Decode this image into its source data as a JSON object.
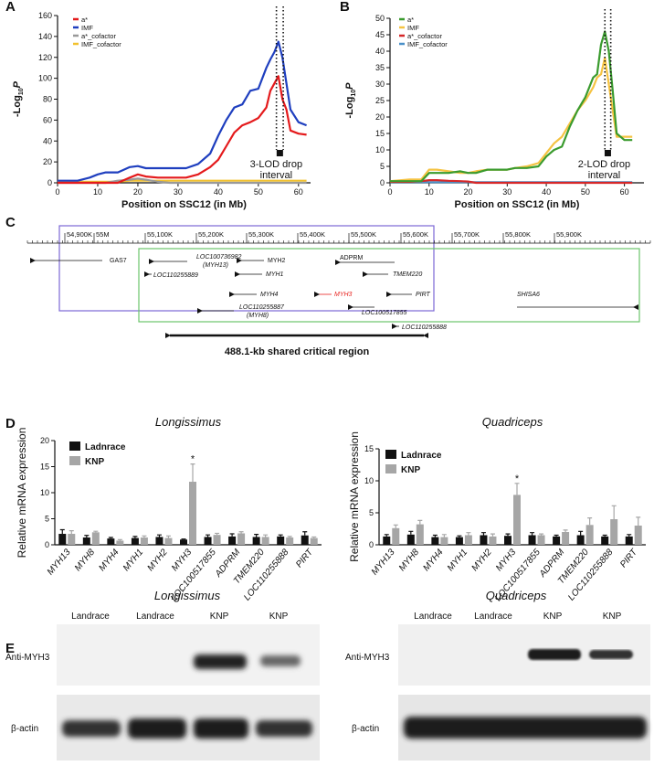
{
  "chart_data": [
    {
      "type": "line",
      "panel": "A",
      "x_label": "Position on SSC12 (in Mb)",
      "y_label": [
        "-Log",
        "10",
        "P"
      ],
      "x": [
        0,
        5,
        8,
        10,
        12,
        15,
        18,
        20,
        22,
        25,
        28,
        30,
        32,
        35,
        38,
        40,
        42,
        44,
        46,
        48,
        50,
        52,
        53,
        54,
        55,
        56,
        57,
        58,
        60,
        62
      ],
      "xlim": [
        0,
        63
      ],
      "xticks": [
        0,
        10,
        20,
        30,
        40,
        50,
        60
      ],
      "ylim": [
        0,
        160
      ],
      "yticks": [
        0,
        20,
        40,
        60,
        80,
        100,
        120,
        140,
        160
      ],
      "series": [
        {
          "name": "a*",
          "color": "#e41a1c",
          "values": [
            0,
            0,
            0,
            0,
            0,
            0,
            5,
            8,
            6,
            5,
            5,
            5,
            5,
            8,
            15,
            22,
            35,
            48,
            55,
            58,
            62,
            72,
            88,
            95,
            102,
            80,
            70,
            50,
            47,
            46
          ]
        },
        {
          "name": "IMF",
          "color": "#1f3fbf",
          "values": [
            2,
            2,
            5,
            8,
            10,
            10,
            15,
            16,
            14,
            14,
            14,
            14,
            14,
            18,
            28,
            45,
            60,
            72,
            75,
            88,
            90,
            110,
            118,
            125,
            135,
            120,
            95,
            70,
            58,
            55
          ]
        },
        {
          "name": "a*_cofactor",
          "color": "#999999",
          "values": [
            0,
            0,
            0,
            0,
            0,
            2,
            3,
            4,
            3,
            1,
            0,
            0,
            0,
            0,
            0,
            0,
            0,
            0,
            0,
            0,
            0,
            0,
            0,
            0,
            0,
            0,
            0,
            0,
            0,
            0
          ]
        },
        {
          "name": "IMF_cofactor",
          "color": "#f2c12e",
          "values": [
            1,
            1,
            1,
            1,
            1,
            1,
            2,
            2,
            2,
            2,
            2,
            2,
            2,
            2,
            2,
            2,
            2,
            2,
            2,
            2,
            2,
            2,
            2,
            2,
            2,
            2,
            2,
            2,
            2,
            2
          ]
        }
      ],
      "interval": [
        54.5,
        56.2
      ],
      "annotation": [
        "3-LOD drop",
        "interval"
      ]
    },
    {
      "type": "line",
      "panel": "B",
      "x_label": "Position on SSC12 (in Mb)",
      "y_label": [
        "-Log",
        "10",
        "P"
      ],
      "x": [
        0,
        5,
        8,
        10,
        12,
        15,
        18,
        20,
        22,
        25,
        28,
        30,
        32,
        35,
        38,
        40,
        42,
        44,
        46,
        48,
        50,
        52,
        53,
        54,
        55,
        56,
        57,
        58,
        60,
        62
      ],
      "xlim": [
        0,
        65
      ],
      "xticks": [
        0,
        10,
        20,
        30,
        40,
        50,
        60
      ],
      "ylim": [
        0,
        50
      ],
      "yticks": [
        0,
        5,
        10,
        15,
        20,
        25,
        30,
        35,
        40,
        45,
        50
      ],
      "series": [
        {
          "name": "a*",
          "color": "#3a9b2e",
          "values": [
            0.5,
            0.5,
            0.5,
            3,
            3,
            3,
            3.5,
            3,
            3,
            4,
            4,
            4,
            4.5,
            4.5,
            5,
            8,
            10,
            11,
            17,
            22,
            26,
            32,
            33,
            42,
            46,
            40,
            28,
            15,
            13,
            13
          ]
        },
        {
          "name": "IMF",
          "color": "#f5c342",
          "values": [
            0.5,
            1,
            1,
            4,
            4,
            3.5,
            3,
            3,
            3.5,
            4,
            4,
            4,
            4.5,
            5,
            6,
            9,
            12,
            14,
            18,
            22,
            25,
            29,
            32,
            33,
            38,
            30,
            22,
            14,
            14,
            14
          ]
        },
        {
          "name": "a*_cofactor",
          "color": "#d62728",
          "values": [
            0.3,
            0.3,
            0.5,
            0.8,
            0.8,
            0.6,
            0.5,
            0.4,
            0,
            0,
            0,
            0,
            0,
            0,
            0,
            0,
            0,
            0,
            0,
            0,
            0,
            0,
            0,
            0,
            0,
            0,
            0,
            0,
            0,
            0
          ]
        },
        {
          "name": "IMF_cofactor",
          "color": "#4a90c8",
          "values": [
            0.2,
            0.2,
            0.2,
            0.2,
            0.2,
            0.2,
            0.2,
            0.2,
            0.2,
            0.2,
            0.2,
            0.2,
            0.2,
            0.2,
            0.2,
            0.2,
            0.2,
            0.2,
            0.2,
            0.2,
            0.2,
            0.2,
            0.2,
            0.2,
            0.2,
            0.2,
            0.2,
            0.2,
            0.2,
            0.2
          ]
        }
      ],
      "interval": [
        55,
        56.5
      ],
      "annotation": [
        "2-LOD drop",
        "interval"
      ]
    },
    {
      "type": "bar",
      "panel": "D",
      "title": "Longissimus",
      "y_label": "Relative mRNA expression",
      "categories": [
        "MYH13",
        "MYH8",
        "MYH4",
        "MYH1",
        "MYH2",
        "MYH3",
        "LOC100517855",
        "ADPRM",
        "TMEM220",
        "LOC110255888",
        "PIRT"
      ],
      "ylim": [
        0,
        20
      ],
      "yticks": [
        0,
        5,
        10,
        15,
        20
      ],
      "series": [
        {
          "name": "Ladnrace",
          "color": "#111111",
          "values": [
            2.1,
            1.4,
            1.2,
            1.3,
            1.5,
            1.0,
            1.5,
            1.6,
            1.5,
            1.6,
            1.8
          ],
          "errors": [
            0.8,
            0.4,
            0.2,
            0.3,
            0.4,
            0.1,
            0.4,
            0.5,
            0.5,
            0.3,
            0.7
          ]
        },
        {
          "name": "KNP",
          "color": "#a6a6a6",
          "values": [
            2.1,
            2.4,
            0.8,
            1.4,
            1.3,
            12.1,
            1.9,
            2.2,
            1.5,
            1.4,
            1.3
          ],
          "errors": [
            0.6,
            0.2,
            0.2,
            0.3,
            0.4,
            3.4,
            0.3,
            0.3,
            0.4,
            0.2,
            0.2
          ]
        }
      ],
      "annotations": [
        {
          "text": "*",
          "category": "MYH3"
        }
      ]
    },
    {
      "type": "bar",
      "panel": "",
      "title": "Quadriceps",
      "y_label": "Relative mRNA expression",
      "categories": [
        "MYH13",
        "MYH8",
        "MYH4",
        "MYH1",
        "MYH2",
        "MYH3",
        "LOC100517855",
        "ADPRM",
        "TMEM220",
        "LOC110255888",
        "PIRT"
      ],
      "ylim": [
        0,
        15
      ],
      "yticks": [
        0,
        5,
        10,
        15
      ],
      "series": [
        {
          "name": "Ladnrace",
          "color": "#111111",
          "values": [
            1.3,
            1.6,
            1.2,
            1.2,
            1.5,
            1.4,
            1.5,
            1.3,
            1.5,
            1.3,
            1.3
          ],
          "errors": [
            0.3,
            0.5,
            0.3,
            0.2,
            0.4,
            0.3,
            0.4,
            0.2,
            0.6,
            0.2,
            0.3
          ]
        },
        {
          "name": "KNP",
          "color": "#a6a6a6",
          "values": [
            2.6,
            3.2,
            1.2,
            1.5,
            1.3,
            7.8,
            1.5,
            2.0,
            3.1,
            4.0,
            3.0
          ],
          "errors": [
            0.5,
            0.6,
            0.4,
            0.4,
            0.4,
            1.8,
            0.2,
            0.3,
            1.1,
            2.1,
            1.3
          ]
        }
      ],
      "annotations": [
        {
          "text": "*",
          "category": "MYH3"
        }
      ]
    }
  ],
  "genome_map": {
    "panel": "C",
    "ruler": [
      "54,900K",
      "55M",
      "55,100K",
      "55,200K",
      "55,300K",
      "55,400K",
      "55,500K",
      "55,600K",
      "55,700K",
      "55,800K",
      "55,900K"
    ],
    "genes": [
      {
        "label": "GAS7"
      },
      {
        "label": "LOC100736982",
        "sublabel": "(MYH13)"
      },
      {
        "label": "LOC110255889"
      },
      {
        "label": "MYH2"
      },
      {
        "label": "ADPRM"
      },
      {
        "label": "MYH1"
      },
      {
        "label": "TMEM220"
      },
      {
        "label": "MYH4"
      },
      {
        "label": "MYH3"
      },
      {
        "label": "PIRT"
      },
      {
        "label": "SHISA6"
      },
      {
        "label": "LOC110255887",
        "sublabel": "(MYH8)"
      },
      {
        "label": "LOC100517855"
      },
      {
        "label": "LOC110255888"
      }
    ],
    "region_label": "488.1-kb shared critical region"
  },
  "western_blot": {
    "panel": "E",
    "blots": [
      {
        "title": "Longissimus",
        "lanes": [
          "Landrace",
          "Landrace",
          "KNP",
          "KNP"
        ],
        "rows": [
          "Anti-MYH3",
          "β-actin"
        ]
      },
      {
        "title": "Quadriceps",
        "lanes": [
          "Landrace",
          "Landrace",
          "KNP",
          "KNP"
        ],
        "rows": [
          "Anti-MYH3",
          "β-actin"
        ]
      }
    ]
  }
}
